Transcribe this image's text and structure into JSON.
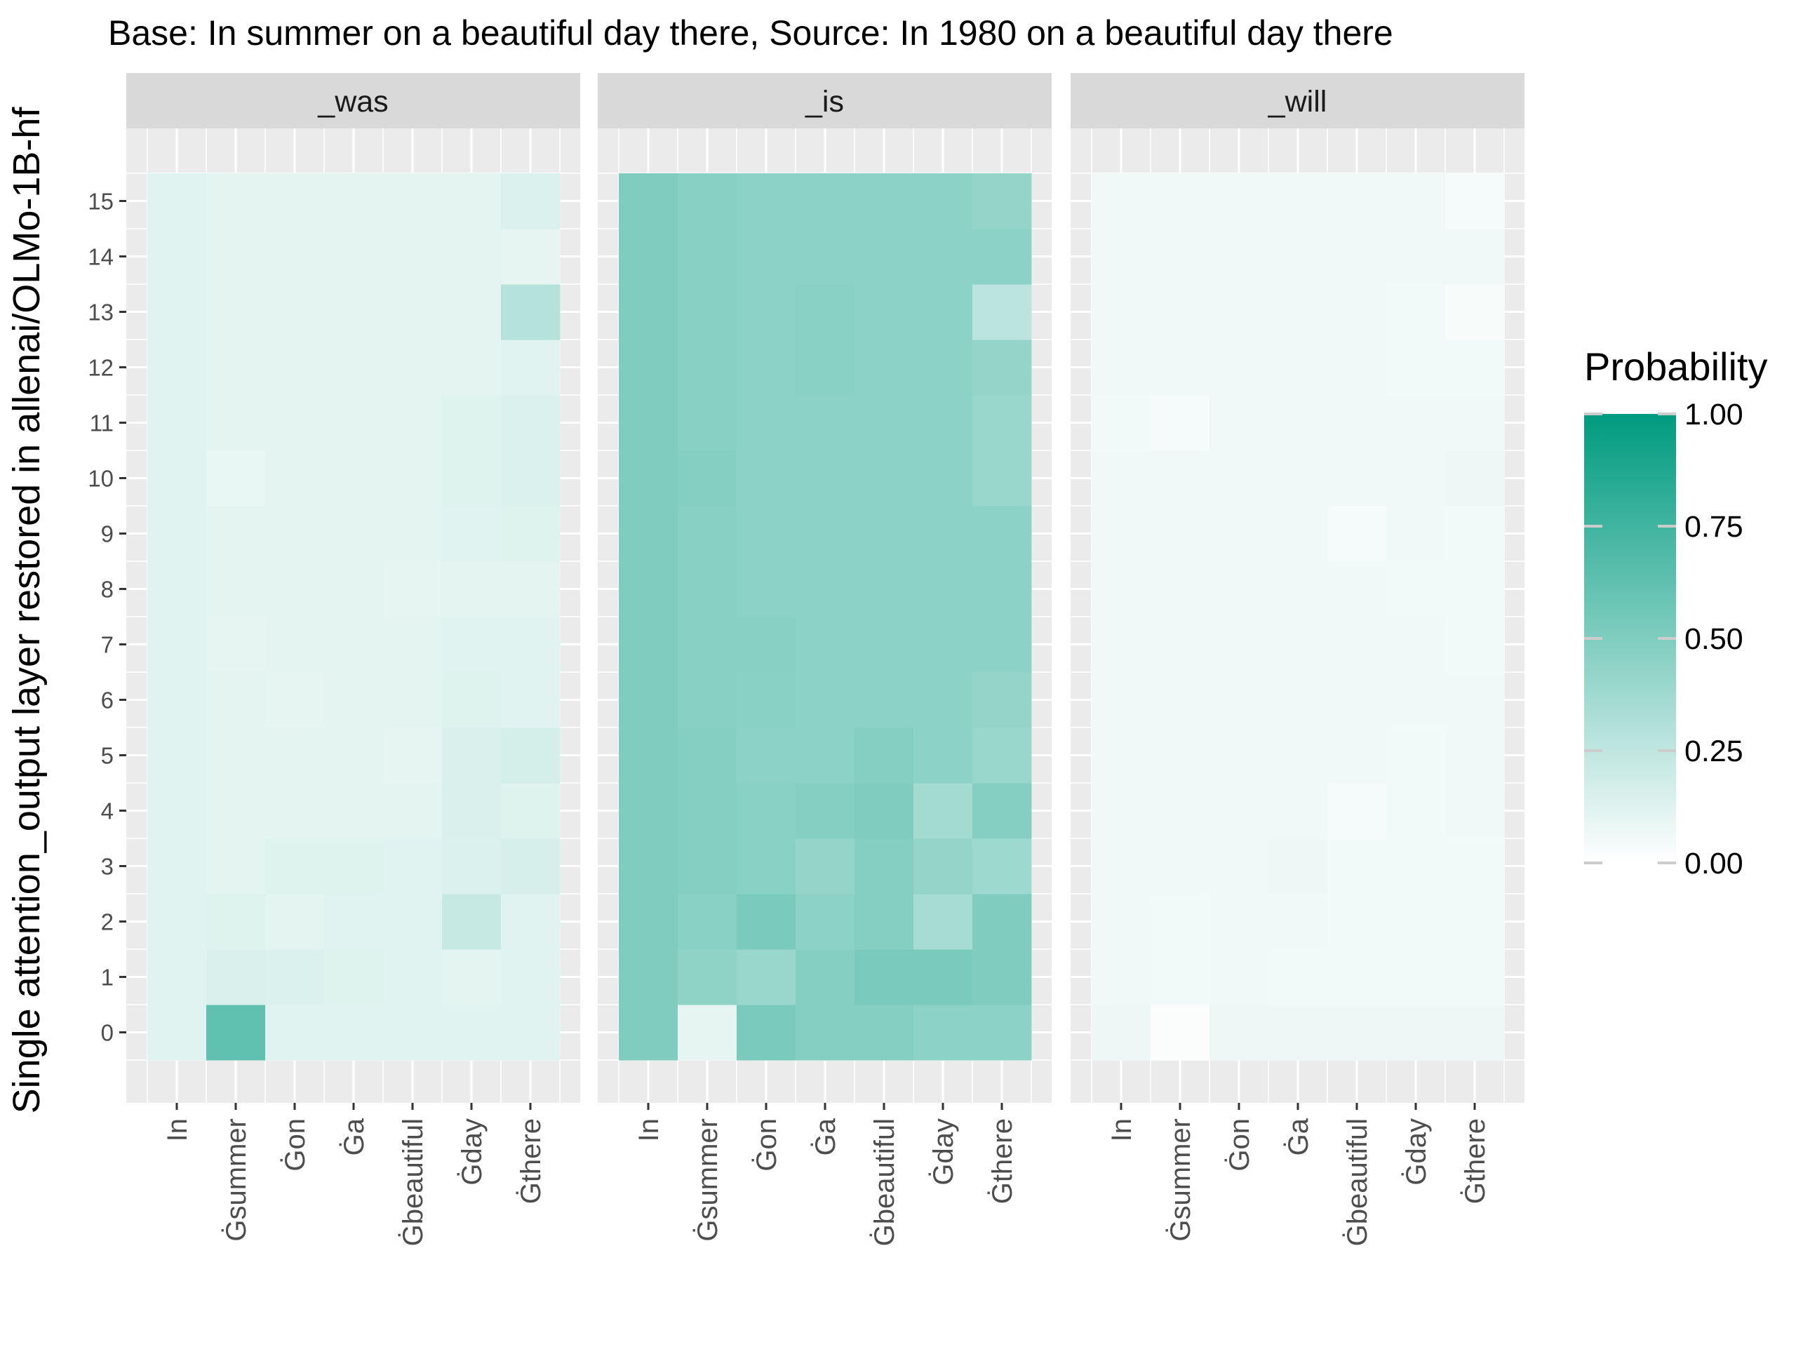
{
  "chart_data": {
    "type": "heatmap",
    "title": "Base: In summer on a beautiful day there, Source: In 1980 on a beautiful day there",
    "ylabel": "Single attention_output layer restored in allenai/OLMo-1B-hf",
    "xlabel": "",
    "x_tokens": [
      "In",
      "Ġsummer",
      "Ġon",
      "Ġa",
      "Ġbeautiful",
      "Ġday",
      "Ġthere"
    ],
    "y_layers": [
      0,
      1,
      2,
      3,
      4,
      5,
      6,
      7,
      8,
      9,
      10,
      11,
      12,
      13,
      14,
      15
    ],
    "y_tick_labels": [
      "0",
      "1",
      "2",
      "3",
      "4",
      "5",
      "6",
      "7",
      "8",
      "9",
      "10",
      "11",
      "12",
      "13",
      "14",
      "15"
    ],
    "legend": {
      "title": "Probability",
      "position": "right",
      "breaks": [
        0,
        0.25,
        0.5,
        0.75,
        1
      ],
      "break_labels": [
        "0.00",
        "0.25",
        "0.50",
        "0.75",
        "1.00"
      ],
      "low_color": "#ffffff",
      "high_color": "#009b80"
    },
    "colors": {
      "low": "#ffffff",
      "high": "#009b80",
      "panel_background": "#ebebeb",
      "grid": "#ffffff",
      "strip_background": "#d9d9d9"
    },
    "grid": true,
    "facets": [
      {
        "label": "_was",
        "values": [
          [
            0.12,
            0.62,
            0.12,
            0.12,
            0.12,
            0.12,
            0.12
          ],
          [
            0.12,
            0.15,
            0.14,
            0.13,
            0.12,
            0.11,
            0.12
          ],
          [
            0.12,
            0.13,
            0.11,
            0.12,
            0.12,
            0.22,
            0.12
          ],
          [
            0.12,
            0.11,
            0.13,
            0.13,
            0.12,
            0.14,
            0.16
          ],
          [
            0.12,
            0.11,
            0.11,
            0.11,
            0.11,
            0.15,
            0.13
          ],
          [
            0.12,
            0.11,
            0.11,
            0.11,
            0.1,
            0.15,
            0.17
          ],
          [
            0.12,
            0.11,
            0.1,
            0.11,
            0.11,
            0.13,
            0.12
          ],
          [
            0.12,
            0.1,
            0.11,
            0.11,
            0.11,
            0.12,
            0.12
          ],
          [
            0.12,
            0.11,
            0.11,
            0.11,
            0.1,
            0.11,
            0.11
          ],
          [
            0.12,
            0.11,
            0.11,
            0.11,
            0.11,
            0.12,
            0.13
          ],
          [
            0.12,
            0.09,
            0.11,
            0.11,
            0.11,
            0.13,
            0.14
          ],
          [
            0.12,
            0.11,
            0.11,
            0.11,
            0.11,
            0.13,
            0.14
          ],
          [
            0.12,
            0.11,
            0.11,
            0.11,
            0.11,
            0.11,
            0.12
          ],
          [
            0.12,
            0.11,
            0.11,
            0.11,
            0.11,
            0.11,
            0.29
          ],
          [
            0.12,
            0.11,
            0.11,
            0.11,
            0.11,
            0.11,
            0.1
          ],
          [
            0.12,
            0.11,
            0.11,
            0.11,
            0.11,
            0.11,
            0.14
          ]
        ]
      },
      {
        "label": "_is",
        "values": [
          [
            0.5,
            0.1,
            0.52,
            0.48,
            0.48,
            0.45,
            0.45
          ],
          [
            0.5,
            0.44,
            0.4,
            0.48,
            0.52,
            0.52,
            0.5
          ],
          [
            0.5,
            0.46,
            0.52,
            0.45,
            0.48,
            0.35,
            0.5
          ],
          [
            0.5,
            0.48,
            0.46,
            0.42,
            0.48,
            0.42,
            0.38
          ],
          [
            0.5,
            0.48,
            0.46,
            0.48,
            0.5,
            0.36,
            0.48
          ],
          [
            0.5,
            0.48,
            0.45,
            0.45,
            0.48,
            0.45,
            0.4
          ],
          [
            0.5,
            0.47,
            0.46,
            0.45,
            0.45,
            0.45,
            0.42
          ],
          [
            0.5,
            0.47,
            0.47,
            0.45,
            0.45,
            0.45,
            0.45
          ],
          [
            0.5,
            0.47,
            0.45,
            0.45,
            0.45,
            0.45,
            0.45
          ],
          [
            0.5,
            0.47,
            0.45,
            0.45,
            0.45,
            0.45,
            0.45
          ],
          [
            0.5,
            0.48,
            0.45,
            0.45,
            0.45,
            0.45,
            0.4
          ],
          [
            0.5,
            0.47,
            0.45,
            0.45,
            0.45,
            0.45,
            0.4
          ],
          [
            0.5,
            0.47,
            0.45,
            0.46,
            0.45,
            0.45,
            0.42
          ],
          [
            0.5,
            0.47,
            0.45,
            0.46,
            0.45,
            0.45,
            0.27
          ],
          [
            0.5,
            0.47,
            0.45,
            0.45,
            0.45,
            0.45,
            0.45
          ],
          [
            0.5,
            0.47,
            0.45,
            0.45,
            0.45,
            0.45,
            0.42
          ]
        ]
      },
      {
        "label": "_will",
        "values": [
          [
            0.07,
            0.02,
            0.07,
            0.07,
            0.07,
            0.07,
            0.07
          ],
          [
            0.06,
            0.05,
            0.06,
            0.05,
            0.05,
            0.05,
            0.05
          ],
          [
            0.06,
            0.05,
            0.06,
            0.06,
            0.05,
            0.05,
            0.05
          ],
          [
            0.06,
            0.06,
            0.06,
            0.07,
            0.05,
            0.05,
            0.05
          ],
          [
            0.06,
            0.06,
            0.06,
            0.06,
            0.04,
            0.05,
            0.06
          ],
          [
            0.06,
            0.06,
            0.06,
            0.06,
            0.06,
            0.05,
            0.06
          ],
          [
            0.06,
            0.06,
            0.06,
            0.06,
            0.06,
            0.06,
            0.06
          ],
          [
            0.06,
            0.06,
            0.06,
            0.06,
            0.06,
            0.06,
            0.05
          ],
          [
            0.06,
            0.06,
            0.06,
            0.06,
            0.06,
            0.05,
            0.05
          ],
          [
            0.06,
            0.06,
            0.06,
            0.06,
            0.04,
            0.06,
            0.05
          ],
          [
            0.06,
            0.06,
            0.06,
            0.06,
            0.06,
            0.06,
            0.07
          ],
          [
            0.05,
            0.04,
            0.06,
            0.06,
            0.06,
            0.06,
            0.06
          ],
          [
            0.06,
            0.06,
            0.06,
            0.06,
            0.06,
            0.05,
            0.05
          ],
          [
            0.06,
            0.06,
            0.06,
            0.06,
            0.06,
            0.05,
            0.03
          ],
          [
            0.06,
            0.06,
            0.06,
            0.06,
            0.06,
            0.06,
            0.06
          ],
          [
            0.06,
            0.06,
            0.06,
            0.06,
            0.06,
            0.06,
            0.04
          ]
        ]
      }
    ]
  }
}
